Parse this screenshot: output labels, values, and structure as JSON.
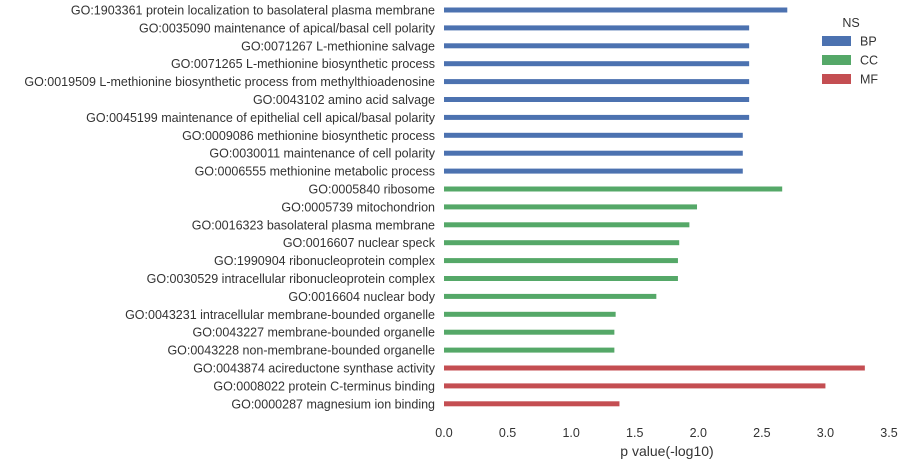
{
  "chart_data": {
    "type": "bar",
    "orientation": "horizontal",
    "categories": [
      "GO:1903361 protein localization to basolateral plasma membrane",
      "GO:0035090 maintenance of apical/basal cell polarity",
      "GO:0071267 L-methionine salvage",
      "GO:0071265 L-methionine biosynthetic process",
      "GO:0019509 L-methionine biosynthetic process from methylthioadenosine",
      "GO:0043102 amino acid salvage",
      "GO:0045199 maintenance of epithelial cell apical/basal polarity",
      "GO:0009086 methionine biosynthetic process",
      "GO:0030011 maintenance of cell polarity",
      "GO:0006555 methionine metabolic process",
      "GO:0005840 ribosome",
      "GO:0005739 mitochondrion",
      "GO:0016323 basolateral plasma membrane",
      "GO:0016607 nuclear speck",
      "GO:1990904 ribonucleoprotein complex",
      "GO:0030529 intracellular ribonucleoprotein complex",
      "GO:0016604 nuclear body",
      "GO:0043231 intracellular membrane-bounded organelle",
      "GO:0043227 membrane-bounded organelle",
      "GO:0043228 non-membrane-bounded organelle",
      "GO:0043874 acireductone synthase activity",
      "GO:0008022 protein C-terminus binding",
      "GO:0000287 magnesium ion binding"
    ],
    "series": [
      {
        "name": "BP",
        "color": "#4c72b0",
        "values": [
          2.7,
          2.4,
          2.4,
          2.4,
          2.4,
          2.4,
          2.4,
          2.35,
          2.35,
          2.35,
          null,
          null,
          null,
          null,
          null,
          null,
          null,
          null,
          null,
          null,
          null,
          null,
          null
        ]
      },
      {
        "name": "CC",
        "color": "#55a868",
        "values": [
          null,
          null,
          null,
          null,
          null,
          null,
          null,
          null,
          null,
          null,
          2.66,
          1.99,
          1.93,
          1.85,
          1.84,
          1.84,
          1.67,
          1.35,
          1.34,
          1.34,
          null,
          null,
          null
        ]
      },
      {
        "name": "MF",
        "color": "#c44e52",
        "values": [
          null,
          null,
          null,
          null,
          null,
          null,
          null,
          null,
          null,
          null,
          null,
          null,
          null,
          null,
          null,
          null,
          null,
          null,
          null,
          null,
          3.31,
          3.0,
          1.38
        ]
      }
    ],
    "xlabel": "p value(-log10)",
    "ylabel": "",
    "xlim": [
      0,
      3.5
    ],
    "xticks": [
      0.0,
      0.5,
      1.0,
      1.5,
      2.0,
      2.5,
      3.0,
      3.5
    ],
    "xtick_labels": [
      "0.0",
      "0.5",
      "1.0",
      "1.5",
      "2.0",
      "2.5",
      "3.0",
      "3.5"
    ],
    "grid": false,
    "legend": {
      "title": "NS",
      "placement": "top-right",
      "entries": [
        "BP",
        "CC",
        "MF"
      ]
    }
  }
}
